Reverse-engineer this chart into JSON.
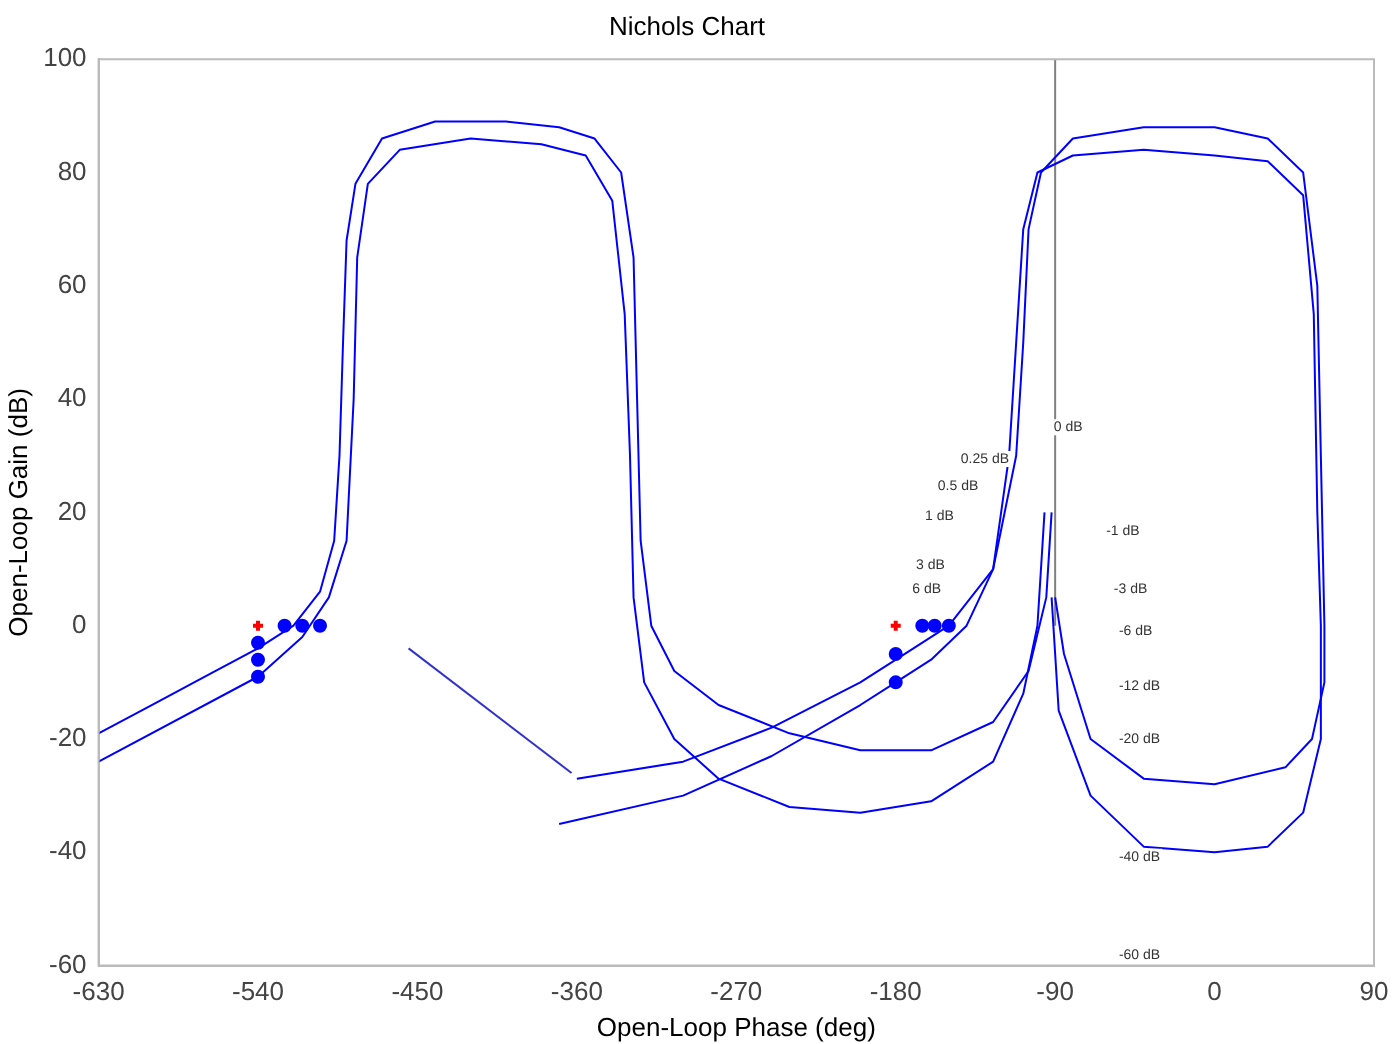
{
  "chart_data": {
    "type": "line",
    "title": "Nichols Chart",
    "xlabel": "Open-Loop Phase (deg)",
    "ylabel": "Open-Loop Gain (dB)",
    "xlim": [
      -630,
      90
    ],
    "xticks": [
      -630,
      -540,
      -450,
      -360,
      -270,
      -180,
      -90,
      0,
      90
    ],
    "ylim": [
      -60,
      100
    ],
    "yticks": [
      -60,
      -40,
      -20,
      0,
      20,
      40,
      60,
      80,
      100
    ],
    "grid": false,
    "legend": false,
    "marker": "none",
    "line_style": "solid",
    "series": [
      {
        "color": "#0000ff",
        "x": [
          -630,
          -600,
          -570,
          -540,
          -520,
          -505,
          -497,
          -494,
          -492,
          -490,
          -485,
          -470,
          -440,
          -400,
          -370,
          -350,
          -335,
          -328,
          -326,
          -324,
          -318,
          -305,
          -280,
          -240,
          -200,
          -160,
          -125,
          -105,
          -95,
          -92
        ],
        "values": [
          -19,
          -14,
          -9,
          -4,
          0,
          6,
          15,
          30,
          50,
          68,
          78,
          86,
          89,
          89,
          88,
          86,
          80,
          65,
          40,
          15,
          0,
          -8,
          -14,
          -19,
          -22,
          -22,
          -17,
          -8,
          5,
          20
        ]
      },
      {
        "color": "#0000ff",
        "x": [
          -630,
          -540,
          -515,
          -500,
          -490,
          -486,
          -484,
          -478,
          -460,
          -420,
          -380,
          -355,
          -340,
          -333,
          -330,
          -328,
          -322,
          -305,
          -280,
          -240,
          -200,
          -160,
          -125,
          -108,
          -100,
          -96
        ],
        "values": [
          -24,
          -9,
          -2,
          5,
          15,
          40,
          65,
          78,
          84,
          86,
          85,
          83,
          75,
          55,
          30,
          5,
          -10,
          -20,
          -27,
          -32,
          -33,
          -31,
          -24,
          -12,
          0,
          20
        ]
      },
      {
        "color": "#0000ff",
        "x": [
          -360,
          -300,
          -250,
          -200,
          -170,
          -150,
          -125,
          -112,
          -108,
          -105,
          -98,
          -80,
          -40,
          0,
          30,
          50,
          58,
          60,
          62,
          62,
          55,
          40,
          0,
          -40,
          -70,
          -85,
          -90
        ],
        "values": [
          -27,
          -24,
          -18,
          -10,
          -4,
          0,
          10,
          30,
          50,
          70,
          80,
          86,
          88,
          88,
          86,
          80,
          60,
          30,
          0,
          -10,
          -20,
          -25,
          -28,
          -27,
          -20,
          -5,
          5
        ]
      },
      {
        "color": "#0000ff",
        "x": [
          -370,
          -300,
          -250,
          -200,
          -180,
          -160,
          -140,
          -125,
          -116,
          -112,
          -108,
          -100,
          -80,
          -40,
          0,
          30,
          50,
          56,
          58,
          60,
          60,
          50,
          30,
          0,
          -40,
          -70,
          -88,
          -92
        ],
        "values": [
          -35,
          -30,
          -23,
          -14,
          -10,
          -6,
          0,
          10,
          30,
          50,
          70,
          80,
          83,
          84,
          83,
          82,
          76,
          55,
          20,
          0,
          -20,
          -33,
          -39,
          -40,
          -39,
          -30,
          -15,
          5
        ]
      },
      {
        "color": "#3333cc",
        "x": [
          -455,
          -363
        ],
        "values": [
          -4,
          -26
        ]
      },
      {
        "color": "#808080",
        "x": [
          -90,
          -90
        ],
        "values": [
          0,
          100
        ]
      },
      {
        "type": "scatter",
        "marker": "circle",
        "color": "#0000ff",
        "x": [
          -525,
          -515,
          -505,
          -540,
          -540,
          -540,
          -180,
          -180,
          -165,
          -158,
          -150
        ],
        "values": [
          0,
          0,
          0,
          -3,
          -6,
          -9,
          -5,
          -10,
          0,
          0,
          0
        ]
      },
      {
        "type": "scatter",
        "marker": "cross",
        "color": "#ff0000",
        "x": [
          -540,
          -180
        ],
        "values": [
          0,
          0
        ]
      }
    ],
    "annotations": [
      "0 dB",
      "0.25 dB",
      "0.5 dB",
      "1 dB",
      "3 dB",
      "6 dB",
      "-1 dB",
      "-3 dB",
      "-6 dB",
      "-12 dB",
      "-20 dB",
      "-40 dB",
      "-60 dB"
    ]
  }
}
